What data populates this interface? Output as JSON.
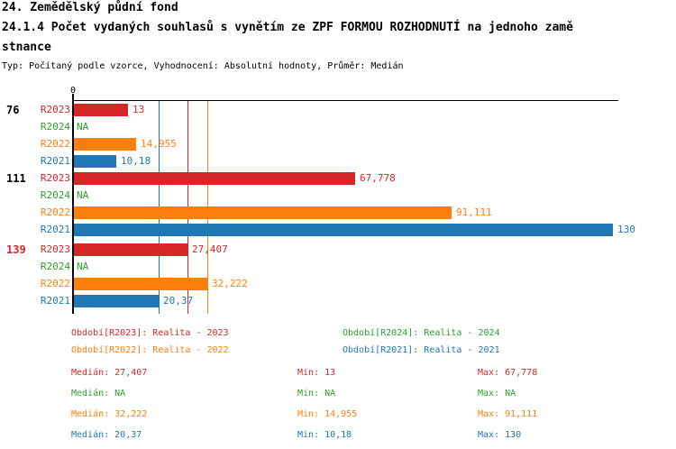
{
  "header": {
    "title_line1": "24. Zemědělský půdní fond",
    "title_line2": "24.1.4 Počet vydaných souhlasů s vynětím ze ZPF FORMOU ROZHODNUTÍ na jednoho zamě",
    "title_line3": "stnance",
    "subtitle": "Typ: Počítaný podle vzorce, Vyhodnocení: Absolutní hodnoty, Průměr: Medián"
  },
  "colors": {
    "axis": "#000000",
    "text": "#000000",
    "highlight_group_label": "#d62728"
  },
  "chart_data": {
    "type": "bar",
    "orientation": "horizontal",
    "value_axis": {
      "zero_label": "0",
      "min": 0,
      "max_rendered": 131.5,
      "position": "top",
      "grid": false
    },
    "series_order": [
      "R2023",
      "R2024",
      "R2022",
      "R2021"
    ],
    "series_colors": {
      "R2023": "#d62728",
      "R2024": "#2ca02c",
      "R2022": "#ff7f0e",
      "R2021": "#1f77b4"
    },
    "groups": [
      {
        "label": "76",
        "label_color": "#000000",
        "bars": [
          {
            "series": "R2023",
            "value": 13,
            "display": "13"
          },
          {
            "series": "R2024",
            "value": null,
            "display": "NA"
          },
          {
            "series": "R2022",
            "value": 14.955,
            "display": "14,955"
          },
          {
            "series": "R2021",
            "value": 10.18,
            "display": "10,18"
          }
        ]
      },
      {
        "label": "111",
        "label_color": "#000000",
        "bars": [
          {
            "series": "R2023",
            "value": 67.778,
            "display": "67,778"
          },
          {
            "series": "R2024",
            "value": null,
            "display": "NA"
          },
          {
            "series": "R2022",
            "value": 91.111,
            "display": "91,111"
          },
          {
            "series": "R2021",
            "value": 130,
            "display": "130"
          }
        ]
      },
      {
        "label": "139",
        "label_color": "#d62728",
        "bars": [
          {
            "series": "R2023",
            "value": 27.407,
            "display": "27,407"
          },
          {
            "series": "R2024",
            "value": null,
            "display": "NA"
          },
          {
            "series": "R2022",
            "value": 32.222,
            "display": "32,222"
          },
          {
            "series": "R2021",
            "value": 20.37,
            "display": "20,37"
          }
        ]
      }
    ],
    "median_lines": [
      {
        "series": "R2021",
        "value": 20.37
      },
      {
        "series": "R2023",
        "value": 27.407
      },
      {
        "series": "R2022",
        "value": 32.222
      }
    ]
  },
  "legend": {
    "items": [
      {
        "series": "R2023",
        "label": "Období[R2023]: Realita - 2023"
      },
      {
        "series": "R2024",
        "label": "Období[R2024]: Realita - 2024"
      },
      {
        "series": "R2022",
        "label": "Období[R2022]: Realita - 2022"
      },
      {
        "series": "R2021",
        "label": "Období[R2021]: Realita - 2021"
      }
    ]
  },
  "stats": {
    "rows": [
      {
        "series": "R2023",
        "median": "Medián: 27,407",
        "min": "Min: 13",
        "max": "Max: 67,778"
      },
      {
        "series": "R2024",
        "median": "Medián: NA",
        "min": "Min: NA",
        "max": "Max: NA"
      },
      {
        "series": "R2022",
        "median": "Medián: 32,222",
        "min": "Min: 14,955",
        "max": "Max: 91,111"
      },
      {
        "series": "R2021",
        "median": "Medián: 20,37",
        "min": "Min: 10,18",
        "max": "Max: 130"
      }
    ]
  }
}
